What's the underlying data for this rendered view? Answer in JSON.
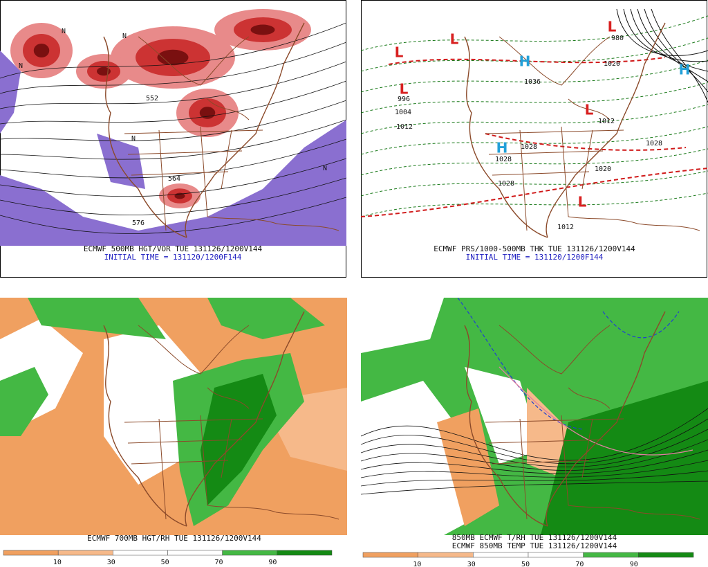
{
  "panels": [
    {
      "caption": "ECMWF 500MB HGT/VOR TUE 131126/1200V144",
      "initial": "INITIAL TIME = 131120/1200F144",
      "labels": [
        "N",
        "N",
        "N",
        "N",
        "N",
        "552",
        "564",
        "576"
      ]
    },
    {
      "caption": "ECMWF PRS/1000-500MB THK TUE 131126/1200V144",
      "initial": "INITIAL TIME = 131120/1200F144",
      "lows": [
        "L",
        "L",
        "L",
        "L",
        "L",
        "L"
      ],
      "highs": [
        "H",
        "H",
        "H"
      ],
      "labels": [
        "996",
        "1004",
        "1012",
        "1036",
        "1028",
        "1028",
        "1028",
        "1012",
        "1020",
        "1028",
        "1012",
        "1020",
        "980"
      ]
    },
    {
      "caption": "ECMWF 700MB HGT/RH TUE 131126/1200V144",
      "colorbar": [
        10,
        30,
        50,
        70,
        90
      ]
    },
    {
      "caption": "850MB ECMWF T/RH TUE 131126/1200V144",
      "caption2": "ECMWF 850MB TEMP TUE 131126/1200V144",
      "colorbar": [
        10,
        30,
        50,
        70,
        90
      ]
    }
  ]
}
